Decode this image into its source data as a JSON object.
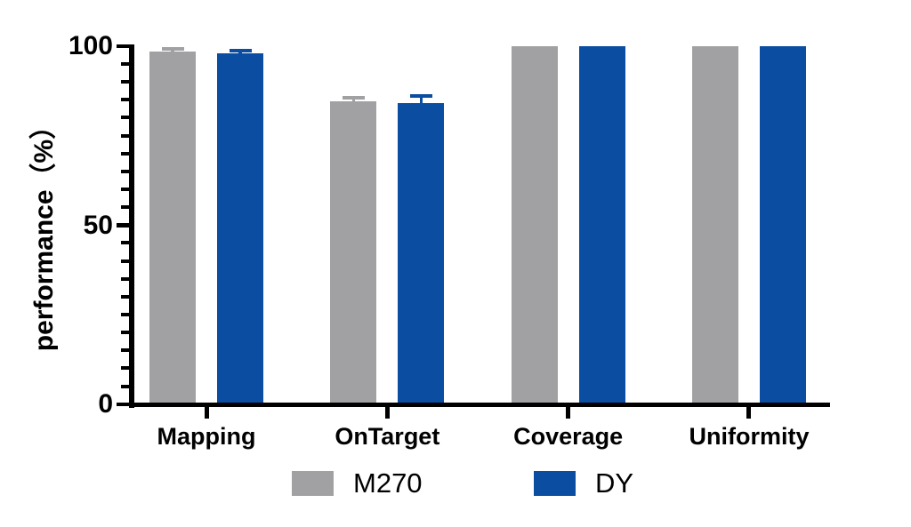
{
  "chart_data": {
    "type": "bar",
    "title": "",
    "xlabel": "",
    "ylabel": "performance（%）",
    "ylim": [
      0,
      100
    ],
    "yticks_major": [
      0,
      50,
      100
    ],
    "ytick_minor_step": 5,
    "grid": false,
    "legend_position": "bottom",
    "categories": [
      "Mapping",
      "OnTarget",
      "Coverage",
      "Uniformity"
    ],
    "series": [
      {
        "name": "M270",
        "color": "#A1A1A4",
        "values": [
          98.5,
          84.5,
          100,
          100
        ],
        "errors": [
          0.8,
          1.0,
          0,
          0
        ]
      },
      {
        "name": "DY",
        "color": "#0B4DA0",
        "values": [
          98.0,
          84.0,
          100,
          100
        ],
        "errors": [
          0.8,
          2.0,
          0,
          0
        ]
      }
    ]
  },
  "colors": {
    "axis": "#000000",
    "background": "#FFFFFF"
  }
}
